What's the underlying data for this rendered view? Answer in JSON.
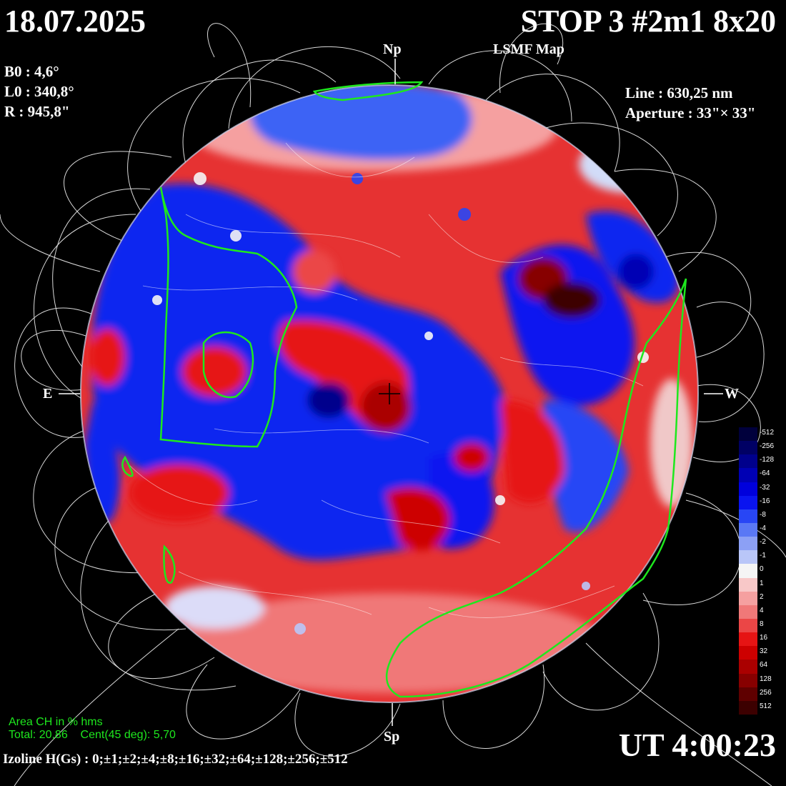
{
  "header": {
    "date": "18.07.2025",
    "title": "STOP 3 #2m1 8x20",
    "subtitle": "LSMF  Map"
  },
  "parameters": {
    "b0": "B0 : 4,6°",
    "l0": "L0 : 340,8°",
    "r": "R  : 945,8\""
  },
  "observation": {
    "line": "Line :  630,25 nm",
    "aperture": "Aperture : 33\"× 33\""
  },
  "directions": {
    "north": "Np",
    "south": "Sp",
    "east": "E",
    "west": "W"
  },
  "coronal_holes": {
    "title": "Area CH in % hms",
    "total": "Total: 20,86",
    "central": "Cent(45 deg): 5,70"
  },
  "footer": {
    "ut": "UT 4:00:23",
    "isolines": "Izoline H(Gs) : 0;±1;±2;±4;±8;±16;±32;±64;±128;±256;±512"
  },
  "legend": {
    "labels": [
      "-512",
      "-256",
      "-128",
      "-64",
      "-32",
      "-16",
      "-8",
      "-4",
      "-2",
      "-1",
      "0",
      "1",
      "2",
      "4",
      "8",
      "16",
      "32",
      "64",
      "128",
      "256",
      "512"
    ],
    "colors": [
      "#00003c",
      "#000064",
      "#00008c",
      "#0000b4",
      "#0000dc",
      "#0a14f0",
      "#2846f5",
      "#5a78f5",
      "#8ca0f5",
      "#b9c6f8",
      "#f5f5f5",
      "#f8c8c8",
      "#f5a0a0",
      "#f07878",
      "#eb4646",
      "#e61414",
      "#cd0000",
      "#aa0000",
      "#870000",
      "#5f0000",
      "#3c0000"
    ]
  },
  "colors": {
    "coronal_hole_boundary": "#1ee81e",
    "field_lines": "#ffffff",
    "positive": "#e61414",
    "negative": "#0a14f0",
    "neutral": "#f5f5f5"
  }
}
